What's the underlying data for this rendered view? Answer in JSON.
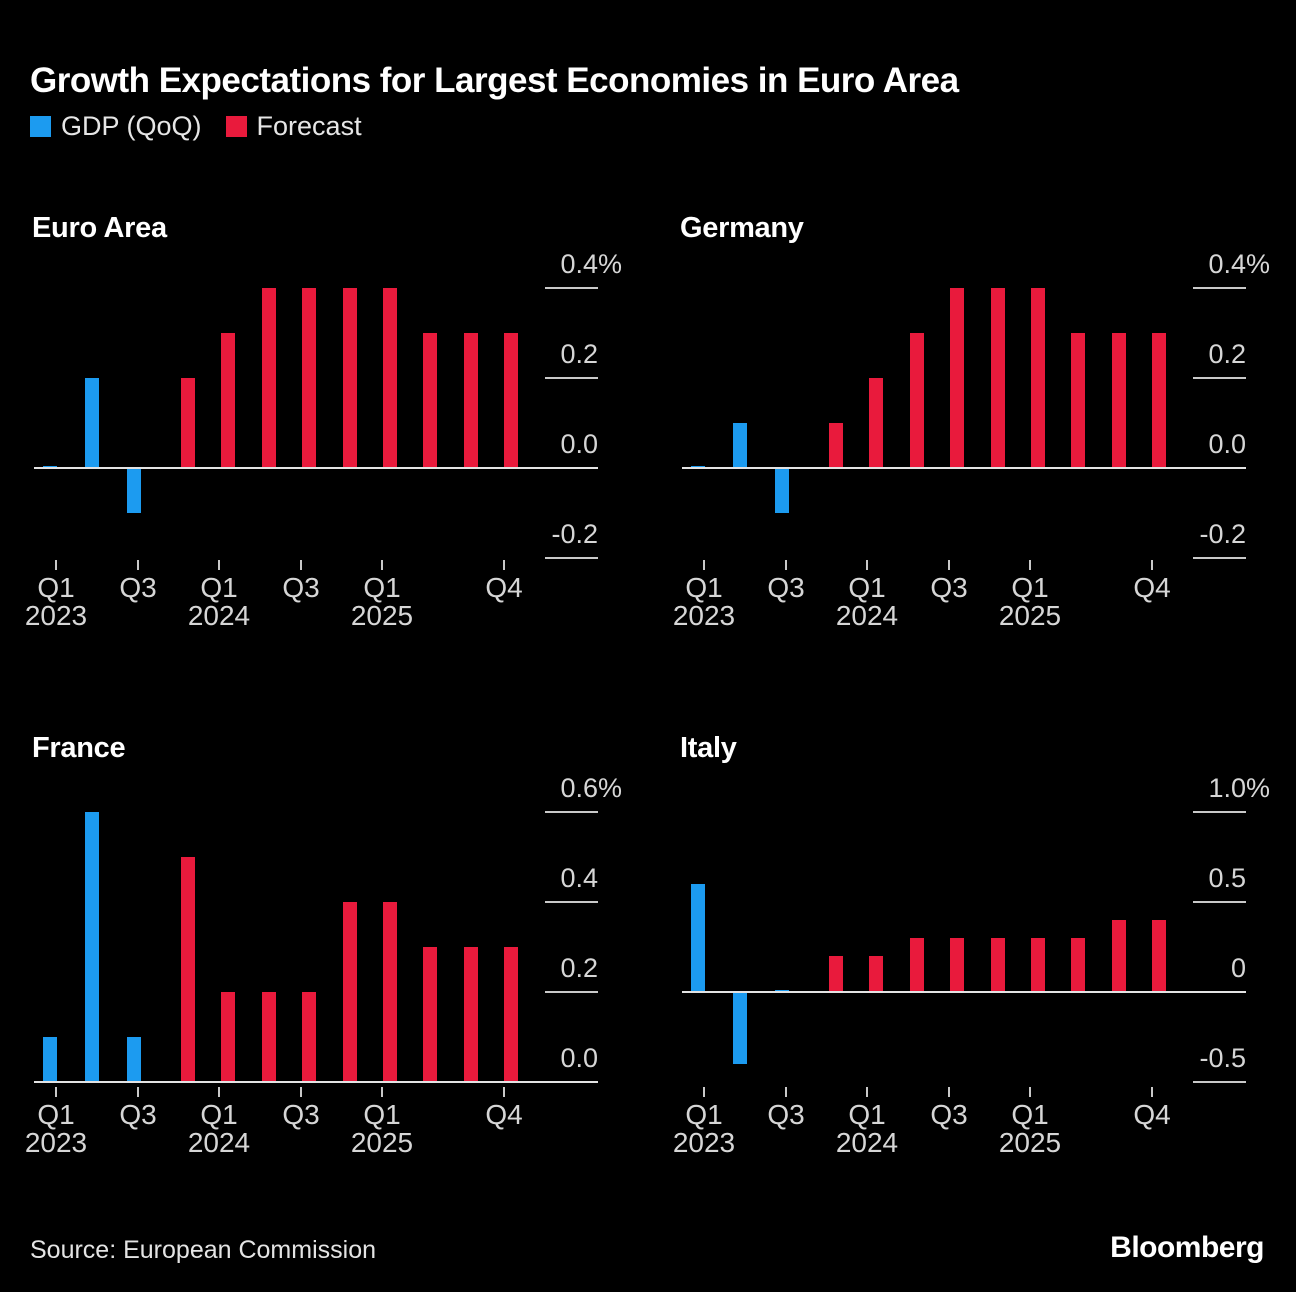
{
  "title": "Growth Expectations for Largest Economies in Euro Area",
  "legend": {
    "items": [
      {
        "label": "GDP (QoQ)",
        "color": "#1C9BF0"
      },
      {
        "label": "Forecast",
        "color": "#E91A3C"
      }
    ]
  },
  "footer": {
    "source": "Source: European Commission",
    "brand": "Bloomberg"
  },
  "colors": {
    "background": "#000000",
    "gdp_bar": "#1C9BF0",
    "forecast_bar": "#E91A3C",
    "axis_text": "#D6D6D6",
    "tick_line": "#C9C9C9",
    "baseline": "#E3E3E3",
    "title_text": "#FFFFFF"
  },
  "x_axis": {
    "categories": [
      "Q1 2023",
      "Q2 2023",
      "Q3 2023",
      "Q4 2023",
      "Q1 2024",
      "Q2 2024",
      "Q3 2024",
      "Q4 2024",
      "Q1 2025",
      "Q2 2025",
      "Q3 2025",
      "Q4 2025"
    ],
    "ticks": [
      {
        "q": "Q1",
        "year": "2023",
        "index": 0
      },
      {
        "q": "Q3",
        "year": "",
        "index": 2
      },
      {
        "q": "Q1",
        "year": "2024",
        "index": 4
      },
      {
        "q": "Q3",
        "year": "",
        "index": 6
      },
      {
        "q": "Q1",
        "year": "2025",
        "index": 8
      },
      {
        "q": "Q4",
        "year": "",
        "index": 11
      }
    ]
  },
  "chart_data": [
    {
      "type": "bar",
      "title": "Euro Area",
      "unit": "%",
      "ylim": [
        -0.3,
        0.45
      ],
      "yticks": [
        {
          "label": "0.4%",
          "value": 0.4
        },
        {
          "label": "0.2",
          "value": 0.2
        },
        {
          "label": "0.0",
          "value": 0
        },
        {
          "label": "-0.2",
          "value": -0.2
        }
      ],
      "series": [
        {
          "name": "GDP (QoQ)",
          "values": [
            0.0,
            0.2,
            -0.1,
            null,
            null,
            null,
            null,
            null,
            null,
            null,
            null,
            null
          ]
        },
        {
          "name": "Forecast",
          "values": [
            null,
            null,
            null,
            0.2,
            0.3,
            0.4,
            0.4,
            0.4,
            0.4,
            0.3,
            0.3,
            0.3
          ]
        }
      ]
    },
    {
      "type": "bar",
      "title": "Germany",
      "unit": "%",
      "ylim": [
        -0.3,
        0.45
      ],
      "yticks": [
        {
          "label": "0.4%",
          "value": 0.4
        },
        {
          "label": "0.2",
          "value": 0.2
        },
        {
          "label": "0.0",
          "value": 0
        },
        {
          "label": "-0.2",
          "value": -0.2
        }
      ],
      "series": [
        {
          "name": "GDP (QoQ)",
          "values": [
            0.0,
            0.1,
            -0.1,
            null,
            null,
            null,
            null,
            null,
            null,
            null,
            null,
            null
          ]
        },
        {
          "name": "Forecast",
          "values": [
            null,
            null,
            null,
            0.1,
            0.2,
            0.3,
            0.4,
            0.4,
            0.4,
            0.3,
            0.3,
            0.3
          ]
        }
      ]
    },
    {
      "type": "bar",
      "title": "France",
      "unit": "%",
      "ylim": [
        0,
        0.65
      ],
      "yticks": [
        {
          "label": "0.6%",
          "value": 0.6
        },
        {
          "label": "0.4",
          "value": 0.4
        },
        {
          "label": "0.2",
          "value": 0.2
        },
        {
          "label": "0.0",
          "value": 0
        }
      ],
      "series": [
        {
          "name": "GDP (QoQ)",
          "values": [
            0.1,
            0.6,
            0.1,
            null,
            null,
            null,
            null,
            null,
            null,
            null,
            null,
            null
          ]
        },
        {
          "name": "Forecast",
          "values": [
            null,
            null,
            null,
            0.5,
            0.2,
            0.2,
            0.2,
            0.4,
            0.4,
            0.3,
            0.3,
            0.3
          ]
        }
      ]
    },
    {
      "type": "bar",
      "title": "Italy",
      "unit": "%",
      "ylim": [
        -0.6,
        1.1
      ],
      "yticks": [
        {
          "label": "1.0%",
          "value": 1.0
        },
        {
          "label": "0.5",
          "value": 0.5
        },
        {
          "label": "0",
          "value": 0
        },
        {
          "label": "-0.5",
          "value": -0.5
        }
      ],
      "series": [
        {
          "name": "GDP (QoQ)",
          "values": [
            0.6,
            -0.4,
            0.0,
            null,
            null,
            null,
            null,
            null,
            null,
            null,
            null,
            null
          ]
        },
        {
          "name": "Forecast",
          "values": [
            null,
            null,
            null,
            0.2,
            0.2,
            0.3,
            0.3,
            0.3,
            0.3,
            0.3,
            0.4,
            0.4
          ]
        }
      ]
    }
  ]
}
